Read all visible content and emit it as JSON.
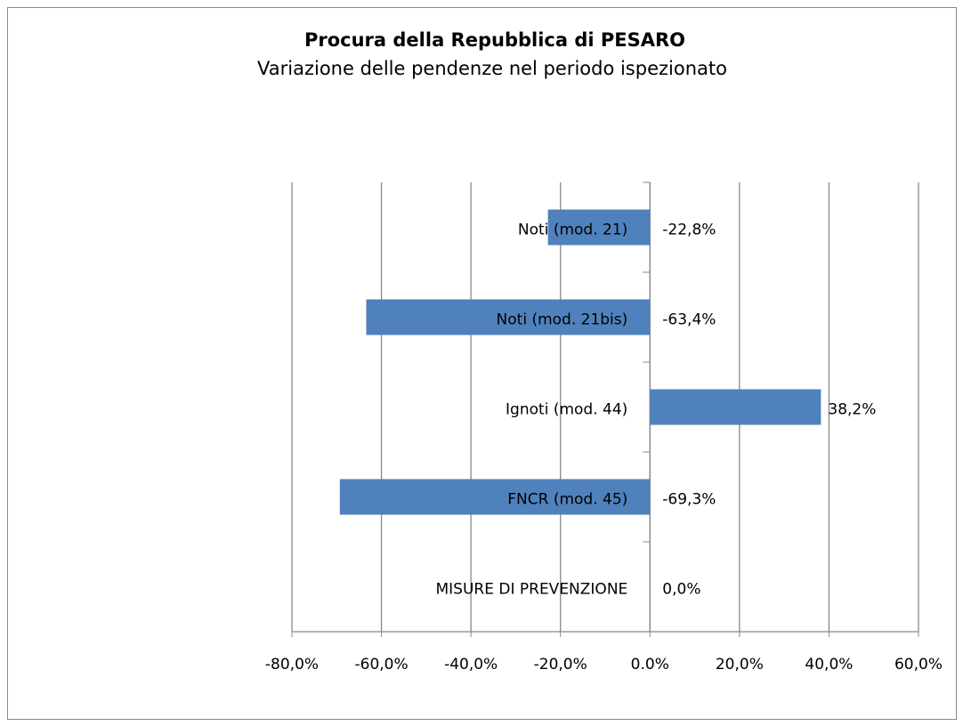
{
  "chart_data": {
    "type": "barh",
    "title": "Procura della Repubblica di PESARO",
    "subtitle": "Variazione delle pendenze nel periodo ispezionato",
    "categories": [
      "Noti (mod. 21)",
      "Noti (mod. 21bis)",
      "Ignoti (mod. 44)",
      "FNCR (mod. 45)",
      "MISURE DI PREVENZIONE"
    ],
    "values": [
      -22.8,
      -63.4,
      38.2,
      -69.3,
      0.0
    ],
    "value_labels": [
      "-22,8%",
      "-63,4%",
      "38,2%",
      "-69,3%",
      "0,0%"
    ],
    "color": "#4f81bd",
    "xlim": [
      -80,
      60
    ],
    "xticks": [
      {
        "value": -80,
        "label": "-80,0%"
      },
      {
        "value": -60,
        "label": "-60,0%"
      },
      {
        "value": -40,
        "label": "-40,0%"
      },
      {
        "value": -20,
        "label": "-20,0%"
      },
      {
        "value": 0,
        "label": "0.0%"
      },
      {
        "value": 20,
        "label": "20,0%"
      },
      {
        "value": 40,
        "label": "40,0%"
      },
      {
        "value": 60,
        "label": "60,0%"
      }
    ],
    "grid": true
  }
}
